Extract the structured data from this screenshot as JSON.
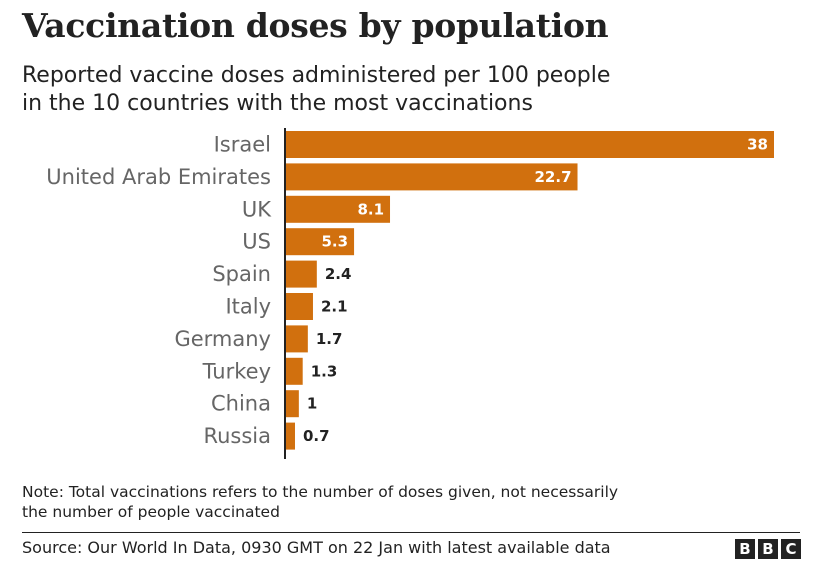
{
  "title": "Vaccination doses by population",
  "subtitle_lines": [
    "Reported vaccine doses administered per 100 people",
    "in the 10 countries with the most vaccinations"
  ],
  "note_lines": [
    "Note: Total vaccinations refers to the number of doses given, not necessarily",
    "the number of people vaccinated"
  ],
  "source": "Source: Our World In Data, 0930 GMT on 22 Jan with latest available data",
  "logo_letters": [
    "B",
    "B",
    "C"
  ],
  "colors": {
    "bar": "#d1700e",
    "axis": "#222222",
    "category_label": "#666666",
    "value_label_inside": "#ffffff",
    "value_label_outside": "#222222"
  },
  "chart_data": {
    "type": "bar",
    "orientation": "horizontal",
    "title": "Vaccination doses by population",
    "categories": [
      "Israel",
      "United Arab Emirates",
      "UK",
      "US",
      "Spain",
      "Italy",
      "Germany",
      "Turkey",
      "China",
      "Russia"
    ],
    "values": [
      38,
      22.7,
      8.1,
      5.3,
      2.4,
      2.1,
      1.7,
      1.3,
      1,
      0.7
    ],
    "value_labels": [
      "38",
      "22.7",
      "8.1",
      "5.3",
      "2.4",
      "2.1",
      "1.7",
      "1.3",
      "1",
      "0.7"
    ],
    "xlim": [
      0,
      38
    ],
    "grid": false,
    "legend": "none"
  }
}
